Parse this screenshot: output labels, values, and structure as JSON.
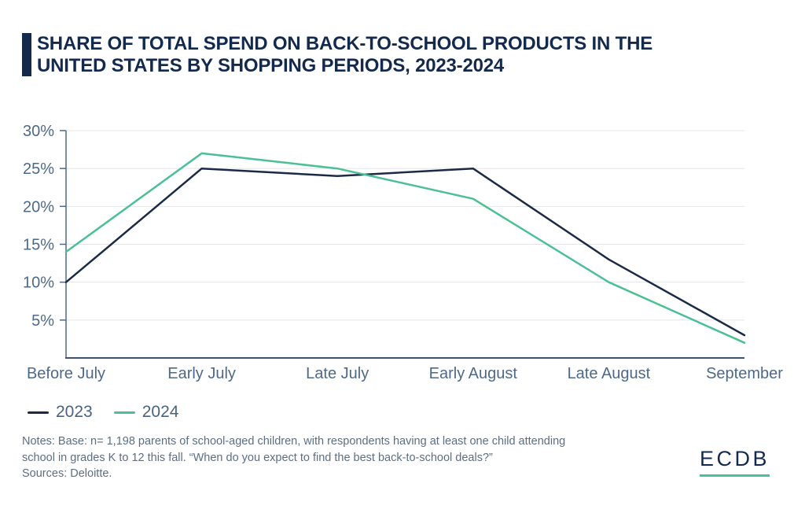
{
  "header": {
    "title_lines": [
      "SHARE OF TOTAL SPEND ON BACK-TO-SCHOOL PRODUCTS IN THE",
      "UNITED STATES BY SHOPPING PERIODS, 2023-2024"
    ]
  },
  "chart_data": {
    "type": "line",
    "title": "SHARE OF TOTAL SPEND ON BACK-TO-SCHOOL PRODUCTS IN THE UNITED STATES BY SHOPPING PERIODS, 2023-2024",
    "categories": [
      "Before July",
      "Early July",
      "Late July",
      "Early August",
      "Late August",
      "September"
    ],
    "series": [
      {
        "name": "2023",
        "color": "#1B2B47",
        "values": [
          10,
          25,
          24,
          25,
          13,
          3
        ]
      },
      {
        "name": "2024",
        "color": "#4BC094",
        "values": [
          14,
          27,
          25,
          21,
          10,
          2
        ]
      }
    ],
    "xlabel": "",
    "ylabel": "",
    "unit": "%",
    "ylim": [
      0,
      30
    ],
    "yticks": [
      5,
      10,
      15,
      20,
      25,
      30
    ],
    "ytick_labels": [
      "5%",
      "10%",
      "15%",
      "20%",
      "25%",
      "30%"
    ],
    "grid": "horizontal",
    "legend_position": "bottom-left"
  },
  "notes": {
    "lines": [
      "Notes: Base: n= 1,198 parents of school-aged children, with respondents having at least one child attending",
      "school in grades K to 12 this fall. “When do you expect to find the best back-to-school deals?”",
      "Sources: Deloitte."
    ]
  },
  "logo": {
    "text": "ECDB",
    "text_color": "#142A4D",
    "underline_color": "#4BC094"
  },
  "colors": {
    "title_navy": "#142A4D",
    "axis_text": "#4E6988",
    "axis_line": "#3C526D",
    "gridline": "#E4E4E6",
    "series_2023": "#1B2B47",
    "series_2024": "#4BC094",
    "notes_text": "#5C6E84",
    "background": "#FFFFFF"
  }
}
